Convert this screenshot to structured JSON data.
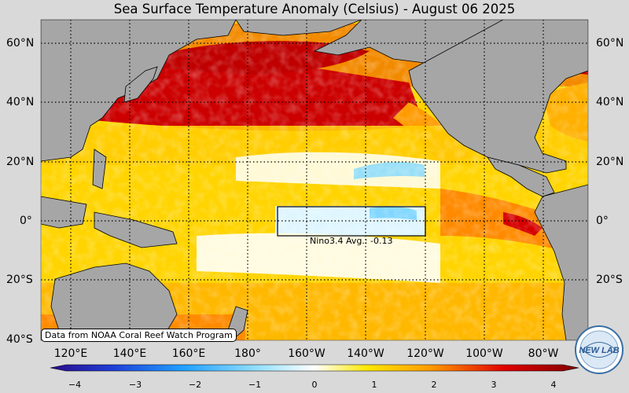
{
  "title": "Sea Surface Temperature Anomaly (Celsius) - August 06 2025",
  "lat_labels": {
    "left": [
      "60°N",
      "40°N",
      "20°N",
      "0°",
      "20°S",
      "40°S"
    ],
    "right": [
      "60°N",
      "40°N",
      "20°N",
      "0°",
      "20°S"
    ]
  },
  "lon_labels": [
    "120°E",
    "140°E",
    "160°E",
    "180°",
    "160°W",
    "140°W",
    "120°W",
    "100°W",
    "80°W"
  ],
  "nino_box_label": "Nino3.4 Avg.: -0.13",
  "credit": "Data from NOAA Coral Reef Watch Program",
  "logo_text": "NEW LAB",
  "colorbar": {
    "ticks": [
      "−4",
      "−3",
      "−2",
      "−1",
      "0",
      "1",
      "2",
      "3",
      "4"
    ],
    "range": [
      -4,
      4
    ],
    "colors": [
      "#2a0a8a",
      "#1f3fd8",
      "#1fa0ff",
      "#9be3ff",
      "#ffffff",
      "#ffe800",
      "#ff9a00",
      "#e00000",
      "#800000"
    ]
  },
  "colors": {
    "land": "#a6a6a6",
    "background": "#d9d9d9",
    "grid": "#000000"
  }
}
